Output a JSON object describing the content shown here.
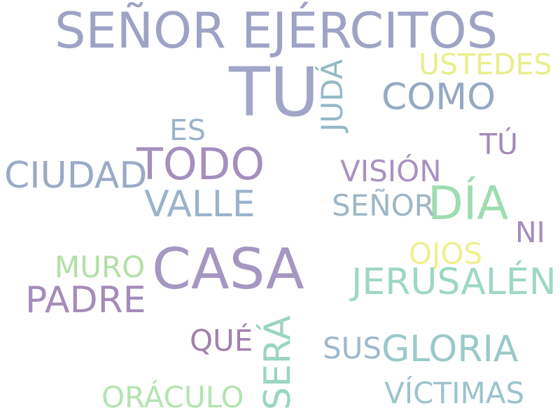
{
  "words": [
    {
      "id": "senor-ejercitos",
      "text": "SEÑOR EJÉRCITOS",
      "color": "#9ea3c6"
    },
    {
      "id": "tu",
      "text": "TU",
      "color": "#a1a6c8"
    },
    {
      "id": "juda",
      "text": "JUDÁ",
      "color": "#93b9c6"
    },
    {
      "id": "ustedes",
      "text": "USTEDES",
      "color": "#e8ef8a"
    },
    {
      "id": "como",
      "text": "COMO",
      "color": "#95a9c4"
    },
    {
      "id": "es",
      "text": "ES",
      "color": "#9bb2c9"
    },
    {
      "id": "tu-accent",
      "text": "TÚ",
      "color": "#a38ab6"
    },
    {
      "id": "ciudad",
      "text": "CIUDAD",
      "color": "#9aaac8"
    },
    {
      "id": "todo",
      "text": "TODO",
      "color": "#a48fbe"
    },
    {
      "id": "vision",
      "text": "VISIÓN",
      "color": "#a892c1"
    },
    {
      "id": "dia",
      "text": "DÍA",
      "color": "#9edcb2"
    },
    {
      "id": "valle",
      "text": "VALLE",
      "color": "#9bb3cc"
    },
    {
      "id": "senor",
      "text": "SEÑOR",
      "color": "#9eb6c8"
    },
    {
      "id": "ni",
      "text": "NI",
      "color": "#a58dbd"
    },
    {
      "id": "casa",
      "text": "CASA",
      "color": "#a597c2"
    },
    {
      "id": "muro",
      "text": "MURO",
      "color": "#b2e0a6"
    },
    {
      "id": "ojos",
      "text": "OJOS",
      "color": "#eef08f"
    },
    {
      "id": "padre",
      "text": "PADRE",
      "color": "#a48cbb"
    },
    {
      "id": "jerusalen",
      "text": "JERUSALÉN",
      "color": "#9dd8c2"
    },
    {
      "id": "que",
      "text": "QUÉ",
      "color": "#a081ad"
    },
    {
      "id": "sera",
      "text": "SERÁ",
      "color": "#9ad5c0"
    },
    {
      "id": "sus",
      "text": "SUS",
      "color": "#9fb8cd"
    },
    {
      "id": "gloria",
      "text": "GLORIA",
      "color": "#99cac8"
    },
    {
      "id": "oraculo",
      "text": "ORÁCULO",
      "color": "#b3e4b0"
    },
    {
      "id": "victimas",
      "text": "VÍCTIMAS",
      "color": "#9cc3cc"
    }
  ]
}
